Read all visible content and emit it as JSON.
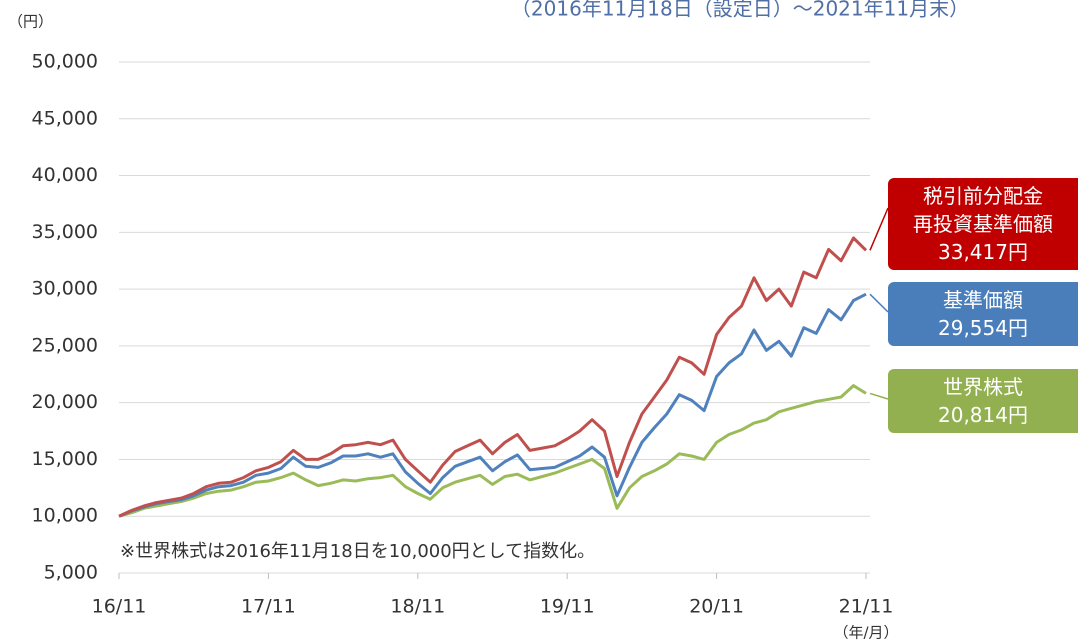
{
  "chart_data": {
    "type": "line",
    "title": "（2016年11月18日（設定日）～2021年11月末）",
    "y_unit": "（円）",
    "x_unit": "（年/月）",
    "note": "※世界株式は2016年11月18日を10,000円として指数化。",
    "x": [
      "16/11",
      "16/12",
      "17/01",
      "17/02",
      "17/03",
      "17/04",
      "17/05",
      "17/06",
      "17/07",
      "17/08",
      "17/09",
      "17/10",
      "17/11",
      "17/12",
      "18/01",
      "18/02",
      "18/03",
      "18/04",
      "18/05",
      "18/06",
      "18/07",
      "18/08",
      "18/09",
      "18/10",
      "18/11",
      "18/12",
      "19/01",
      "19/02",
      "19/03",
      "19/04",
      "19/05",
      "19/06",
      "19/07",
      "19/08",
      "19/09",
      "19/10",
      "19/11",
      "19/12",
      "20/01",
      "20/02",
      "20/03",
      "20/04",
      "20/05",
      "20/06",
      "20/07",
      "20/08",
      "20/09",
      "20/10",
      "20/11",
      "20/12",
      "21/01",
      "21/02",
      "21/03",
      "21/04",
      "21/05",
      "21/06",
      "21/07",
      "21/08",
      "21/09",
      "21/10",
      "21/11"
    ],
    "xticks": [
      "16/11",
      "17/11",
      "18/11",
      "19/11",
      "20/11",
      "21/11"
    ],
    "ylim": [
      5000,
      50000
    ],
    "yticks": [
      {
        "value": 5000,
        "label": "5,000"
      },
      {
        "value": 10000,
        "label": "10,000"
      },
      {
        "value": 15000,
        "label": "15,000"
      },
      {
        "value": 20000,
        "label": "20,000"
      },
      {
        "value": 25000,
        "label": "25,000"
      },
      {
        "value": 30000,
        "label": "30,000"
      },
      {
        "value": 35000,
        "label": "35,000"
      },
      {
        "value": 40000,
        "label": "40,000"
      },
      {
        "value": 45000,
        "label": "45,000"
      },
      {
        "value": 50000,
        "label": "50,000"
      }
    ],
    "grid": true,
    "series": [
      {
        "name": "税引前分配金\n再投資基準価額",
        "color": "#c0504d",
        "box_color": "#c00000",
        "end_value": 33417,
        "end_label": "33,417円",
        "values": [
          10000,
          10500,
          10900,
          11200,
          11400,
          11600,
          12000,
          12600,
          12900,
          13000,
          13400,
          14000,
          14300,
          14800,
          15800,
          15000,
          15000,
          15500,
          16200,
          16300,
          16500,
          16300,
          16700,
          15000,
          14000,
          13000,
          14500,
          15700,
          16200,
          16700,
          15500,
          16500,
          17200,
          15800,
          16000,
          16200,
          16800,
          17500,
          18500,
          17500,
          13500,
          16500,
          19000,
          20500,
          22000,
          24000,
          23500,
          22500,
          26000,
          27500,
          28500,
          31000,
          29000,
          30000,
          28500,
          31500,
          31000,
          33500,
          32500,
          34500,
          33417
        ]
      },
      {
        "name": "基準価額",
        "color": "#4f81bd",
        "box_color": "#4a7ebb",
        "end_value": 29554,
        "end_label": "29,554円",
        "values": [
          10000,
          10450,
          10800,
          11100,
          11300,
          11450,
          11800,
          12300,
          12600,
          12700,
          13000,
          13600,
          13800,
          14200,
          15200,
          14400,
          14300,
          14700,
          15300,
          15300,
          15500,
          15200,
          15500,
          13900,
          12900,
          12000,
          13400,
          14400,
          14800,
          15200,
          14000,
          14800,
          15400,
          14100,
          14200,
          14300,
          14800,
          15300,
          16100,
          15200,
          11800,
          14300,
          16500,
          17800,
          19000,
          20700,
          20200,
          19300,
          22300,
          23500,
          24300,
          26400,
          24600,
          25400,
          24100,
          26600,
          26100,
          28200,
          27300,
          29000,
          29554
        ]
      },
      {
        "name": "世界株式",
        "color": "#9bbb59",
        "box_color": "#92b050",
        "end_value": 20814,
        "end_label": "20,814円",
        "values": [
          10000,
          10300,
          10700,
          10900,
          11100,
          11300,
          11600,
          12000,
          12200,
          12300,
          12600,
          13000,
          13100,
          13400,
          13800,
          13200,
          12700,
          12900,
          13200,
          13100,
          13300,
          13400,
          13600,
          12600,
          12000,
          11500,
          12500,
          13000,
          13300,
          13600,
          12800,
          13500,
          13700,
          13200,
          13500,
          13800,
          14200,
          14600,
          15000,
          14200,
          10700,
          12500,
          13500,
          14000,
          14600,
          15500,
          15300,
          15000,
          16500,
          17200,
          17600,
          18200,
          18500,
          19200,
          19500,
          19800,
          20100,
          20300,
          20500,
          21500,
          20814
        ]
      }
    ]
  }
}
